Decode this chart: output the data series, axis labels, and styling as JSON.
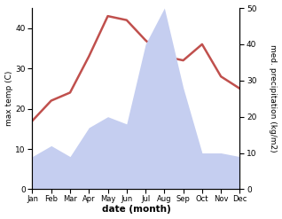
{
  "months": [
    "Jan",
    "Feb",
    "Mar",
    "Apr",
    "May",
    "Jun",
    "Jul",
    "Aug",
    "Sep",
    "Oct",
    "Nov",
    "Dec"
  ],
  "temperature": [
    17,
    22,
    24,
    33,
    43,
    42,
    37,
    33,
    32,
    36,
    28,
    25
  ],
  "precipitation": [
    9,
    12,
    9,
    17,
    20,
    18,
    40,
    50,
    28,
    10,
    10,
    9
  ],
  "temp_color": "#c0504d",
  "precip_fill_color": "#c5cef0",
  "ylabel_left": "max temp (C)",
  "ylabel_right": "med. precipitation (kg/m2)",
  "xlabel": "date (month)",
  "ylim_left": [
    0,
    45
  ],
  "ylim_right": [
    0,
    50
  ],
  "yticks_left": [
    0,
    10,
    20,
    30,
    40
  ],
  "yticks_right": [
    0,
    10,
    20,
    30,
    40,
    50
  ],
  "background_color": "#ffffff"
}
